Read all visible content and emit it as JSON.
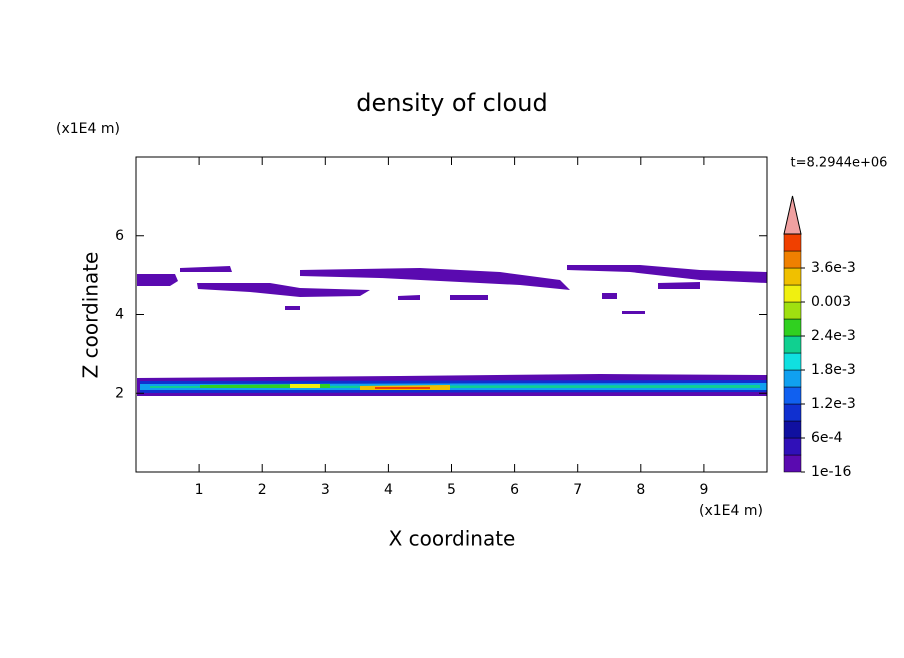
{
  "chart_data": {
    "type": "contour",
    "title": "density of cloud",
    "x_label": "X coordinate",
    "y_label": "Z coordinate",
    "x_unit": "(x1E4 m)",
    "y_unit": "(x1E4 m)",
    "time_label": "t=8.2944e+06",
    "xlim": [
      0,
      10
    ],
    "ylim": [
      0,
      8
    ],
    "xticks": [
      1,
      2,
      3,
      4,
      5,
      6,
      7,
      8,
      9
    ],
    "yticks": [
      2,
      4,
      6
    ],
    "colorbar": {
      "ticks": [
        {
          "value": 1e-16,
          "label": "1e-16"
        },
        {
          "value": 0.0006,
          "label": "6e-4"
        },
        {
          "value": 0.0012,
          "label": "1.2e-3"
        },
        {
          "value": 0.0018,
          "label": "1.8e-3"
        },
        {
          "value": 0.0024,
          "label": "2.4e-3"
        },
        {
          "value": 0.003,
          "label": "0.003"
        },
        {
          "value": 0.0036,
          "label": "3.6e-3"
        }
      ],
      "colors": [
        "#5a0ab0",
        "#3010b8",
        "#1010a0",
        "#1030d0",
        "#1060f0",
        "#10a0f0",
        "#10e0e0",
        "#10d090",
        "#30d020",
        "#a0e010",
        "#f0f010",
        "#f0c000",
        "#f08000",
        "#f04000"
      ],
      "over_color": "#f0a0a0"
    }
  }
}
